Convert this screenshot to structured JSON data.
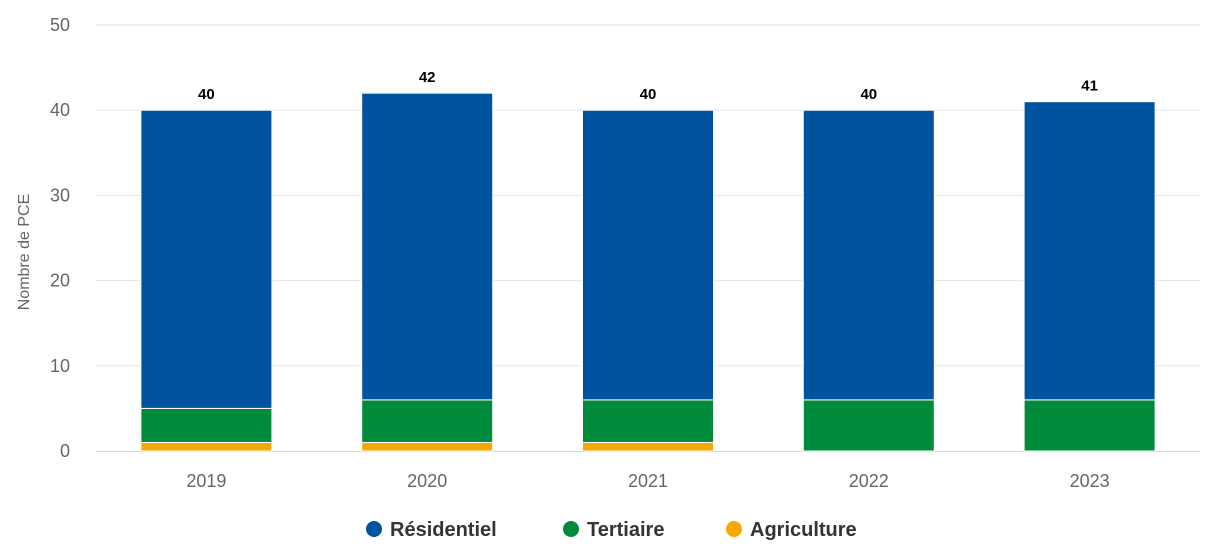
{
  "chart_data": {
    "type": "bar",
    "stacked": true,
    "categories": [
      "2019",
      "2020",
      "2021",
      "2022",
      "2023"
    ],
    "series": [
      {
        "name": "Agriculture",
        "values": [
          1,
          1,
          1,
          0,
          0
        ],
        "color": "#f5a800"
      },
      {
        "name": "Tertiaire",
        "values": [
          4,
          5,
          5,
          6,
          6
        ],
        "color": "#008a3c"
      },
      {
        "name": "Résidentiel",
        "values": [
          35,
          36,
          34,
          34,
          35
        ],
        "color": "#00539f"
      }
    ],
    "totals": [
      40,
      42,
      40,
      40,
      41
    ],
    "title": "",
    "xlabel": "",
    "ylabel": "Nombre de PCE",
    "ylim": [
      0,
      50
    ],
    "yticks": [
      0,
      10,
      20,
      30,
      40,
      50
    ],
    "grid": true,
    "legend": {
      "position": "bottom",
      "order": [
        "Résidentiel",
        "Tertiaire",
        "Agriculture"
      ]
    }
  }
}
